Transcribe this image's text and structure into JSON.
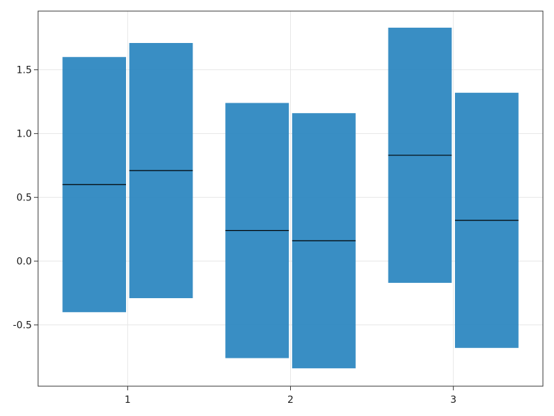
{
  "chart_data": {
    "type": "boxplot",
    "x_ticks": [
      1,
      2,
      3
    ],
    "y_ticks": [
      -0.5,
      0.0,
      0.5,
      1.0,
      1.5
    ],
    "y_tick_labels": [
      "-0.5",
      "0.0",
      "0.5",
      "1.0",
      "1.5"
    ],
    "x_tick_labels": [
      "1",
      "2",
      "3"
    ],
    "xlim": [
      0.45,
      3.55
    ],
    "ylim": [
      -0.98,
      1.96
    ],
    "grid": true,
    "bar_color": "#2a85c0",
    "groups": [
      {
        "x": 1,
        "boxes": [
          {
            "low": -0.4,
            "median": 0.6,
            "high": 1.6
          },
          {
            "low": -0.29,
            "median": 0.71,
            "high": 1.71
          }
        ]
      },
      {
        "x": 2,
        "boxes": [
          {
            "low": -0.76,
            "median": 0.24,
            "high": 1.24
          },
          {
            "low": -0.84,
            "median": 0.16,
            "high": 1.16
          }
        ]
      },
      {
        "x": 3,
        "boxes": [
          {
            "low": -0.17,
            "median": 0.83,
            "high": 1.83
          },
          {
            "low": -0.68,
            "median": 0.32,
            "high": 1.32
          }
        ]
      }
    ]
  }
}
